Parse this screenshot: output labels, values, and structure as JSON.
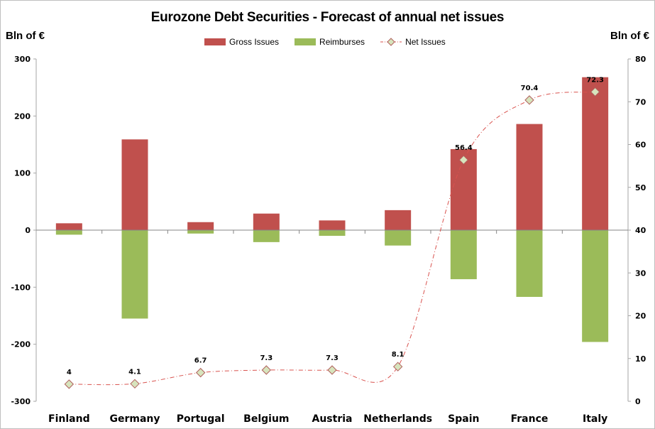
{
  "chart_data": {
    "type": "bar",
    "title": "Eurozone Debt Securities - Forecast of annual net issues",
    "ylabel_left": "Bln of €",
    "ylabel_right": "Bln of €",
    "xlabel": "",
    "categories": [
      "Finland",
      "Germany",
      "Portugal",
      "Belgium",
      "Austria",
      "Netherlands",
      "Spain",
      "France",
      "Italy"
    ],
    "ylim_left": [
      -300,
      300
    ],
    "yticks_left": [
      300,
      200,
      100,
      0,
      -100,
      -200,
      -300
    ],
    "ylim_right": [
      0,
      80
    ],
    "yticks_right": [
      80,
      70,
      60,
      50,
      40,
      30,
      20,
      10,
      0
    ],
    "legend_position": "top-center",
    "grid": false,
    "series": [
      {
        "name": "Gross Issues",
        "type": "bar",
        "axis": "left",
        "color": "#c0504d",
        "values": [
          12,
          159,
          14,
          29,
          17,
          35,
          142,
          186,
          268
        ]
      },
      {
        "name": "Reimburses",
        "type": "bar",
        "axis": "left",
        "color": "#9bbb59",
        "values": [
          -8,
          -155,
          -6,
          -21,
          -10,
          -27,
          -86,
          -117,
          -196
        ]
      },
      {
        "name": "Net Issues",
        "type": "line",
        "axis": "right",
        "color": "#d9534f",
        "marker_fill": "#d7e4bd",
        "values": [
          4,
          4.1,
          6.7,
          7.3,
          7.3,
          8.1,
          56.4,
          70.4,
          72.3
        ],
        "labels": [
          "4",
          "4.1",
          "6.7",
          "7.3",
          "7.3",
          "8.1",
          "56.4",
          "70.4",
          "72.3"
        ]
      }
    ]
  }
}
